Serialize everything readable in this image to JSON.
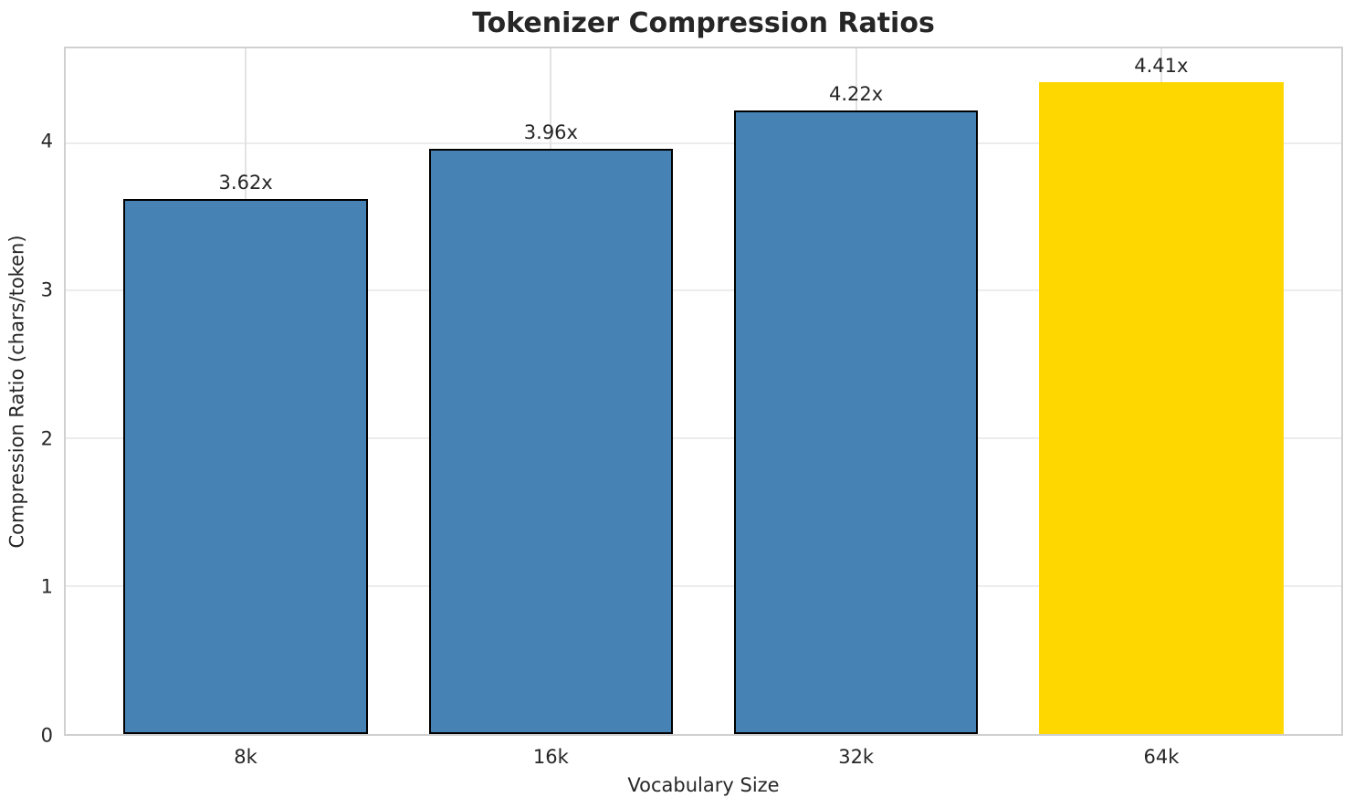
{
  "chart_data": {
    "type": "bar",
    "title": "Tokenizer Compression Ratios",
    "xlabel": "Vocabulary Size",
    "ylabel": "Compression Ratio (chars/token)",
    "categories": [
      "8k",
      "16k",
      "32k",
      "64k"
    ],
    "values": [
      3.62,
      3.96,
      4.22,
      4.41
    ],
    "bar_labels": [
      "3.62x",
      "3.96x",
      "4.22x",
      "4.41x"
    ],
    "ylim": [
      0,
      4.64
    ],
    "yticks": [
      0,
      1,
      2,
      3,
      4
    ],
    "grid": true,
    "legend_position": "none",
    "bar_colors": [
      "#4682B4",
      "#4682B4",
      "#4682B4",
      "#FFD700"
    ],
    "bar_edge_colors": [
      "#000000",
      "#000000",
      "#000000",
      "none"
    ],
    "highlight_index": 3
  },
  "style_colors": {
    "text": "#262626",
    "grid_horizontal": "#ececec",
    "grid_vertical": "#e3e3e3",
    "spine": "#d0d0d0",
    "background": "#ffffff",
    "bar_blue": "#4682B4",
    "bar_gold": "#FFD700",
    "bar_edge": "#000000"
  }
}
